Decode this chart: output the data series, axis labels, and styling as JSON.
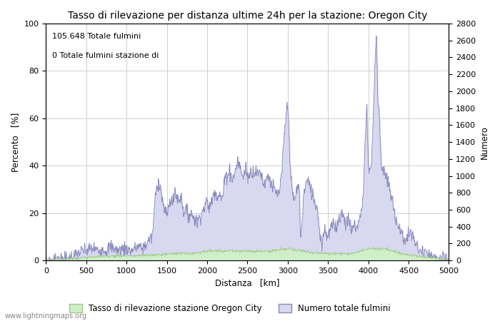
{
  "title": "Tasso di rilevazione per distanza ultime 24h per la stazione: Oregon City",
  "xlabel": "Distanza   [km]",
  "ylabel_left": "Percento   [%]",
  "ylabel_right": "Numero",
  "annotation_line1": "105.648 Totale fulmini",
  "annotation_line2": "0 Totale fulmini stazione di",
  "legend_green": "Tasso di rilevazione stazione Oregon City",
  "legend_blue": "Numero totale fulmini",
  "watermark": "www.lightningmaps.org",
  "xlim": [
    0,
    5000
  ],
  "ylim_left": [
    0,
    100
  ],
  "ylim_right": [
    0,
    2800
  ],
  "xticks": [
    0,
    500,
    1000,
    1500,
    2000,
    2500,
    3000,
    3500,
    4000,
    4500,
    5000
  ],
  "yticks_left": [
    0,
    20,
    40,
    60,
    80,
    100
  ],
  "yticks_right": [
    0,
    200,
    400,
    600,
    800,
    1000,
    1200,
    1400,
    1600,
    1800,
    2000,
    2200,
    2400,
    2600,
    2800
  ],
  "color_green_fill": "#d0eec8",
  "color_green_line": "#a0c890",
  "color_blue_fill": "#d8d8f0",
  "color_blue_line": "#8888bb",
  "background_color": "#ffffff",
  "grid_color": "#c8c8c8",
  "title_fontsize": 10,
  "axis_fontsize": 8.5,
  "tick_fontsize": 8,
  "annotation_fontsize": 8,
  "figsize": [
    7.0,
    4.5
  ],
  "dpi": 100
}
